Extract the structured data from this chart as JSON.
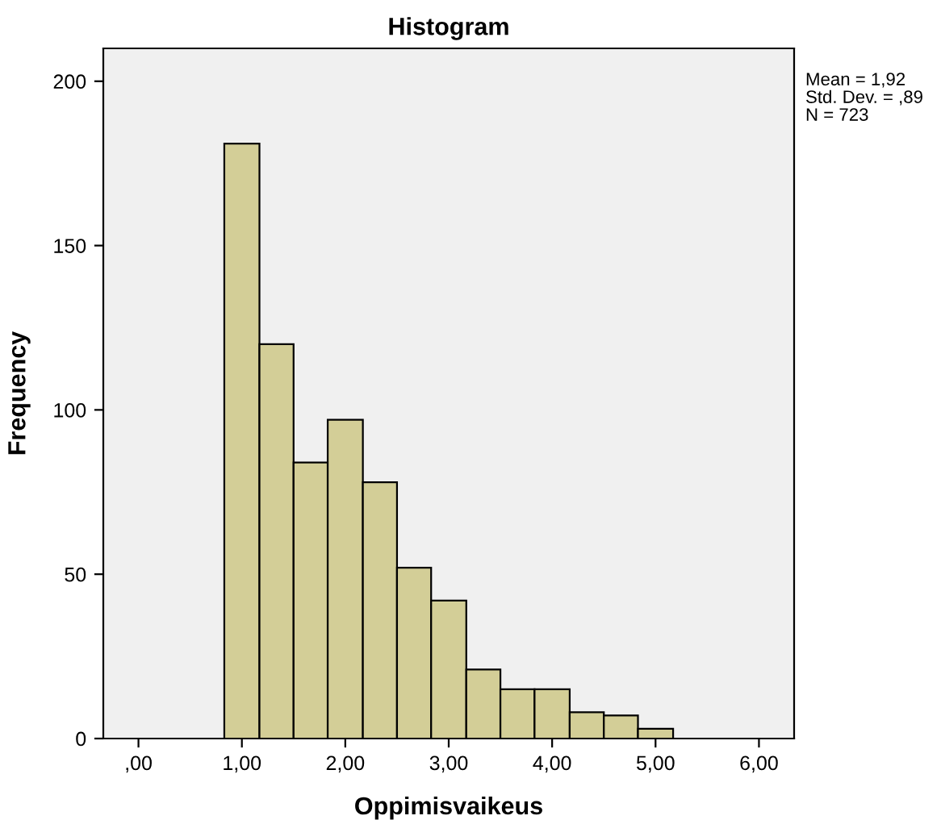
{
  "chart_data": {
    "type": "histogram",
    "title": "Histogram",
    "xlabel": "Oppimisvaikeus",
    "ylabel": "Frequency",
    "bins": [
      0.83,
      1.17,
      1.5,
      1.83,
      2.17,
      2.5,
      2.83,
      3.17,
      3.5,
      3.83,
      4.17,
      4.5,
      4.83,
      5.17
    ],
    "values": [
      181,
      120,
      84,
      97,
      78,
      52,
      42,
      21,
      15,
      15,
      8,
      7,
      3
    ],
    "color": "#d3ce97",
    "xlim": [
      -0.34,
      6.34
    ],
    "xticks": [
      {
        "value": 0,
        "label": ",00"
      },
      {
        "value": 1,
        "label": "1,00"
      },
      {
        "value": 2,
        "label": "2,00"
      },
      {
        "value": 3,
        "label": "3,00"
      },
      {
        "value": 4,
        "label": "4,00"
      },
      {
        "value": 5,
        "label": "5,00"
      },
      {
        "value": 6,
        "label": "6,00"
      }
    ],
    "ylim": [
      0,
      210
    ],
    "yticks": [
      0,
      50,
      100,
      150,
      200
    ],
    "grid": false,
    "legend": false,
    "annotations": [
      "Mean = 1,92",
      "Std. Dev. = ,89",
      "N = 723"
    ]
  }
}
